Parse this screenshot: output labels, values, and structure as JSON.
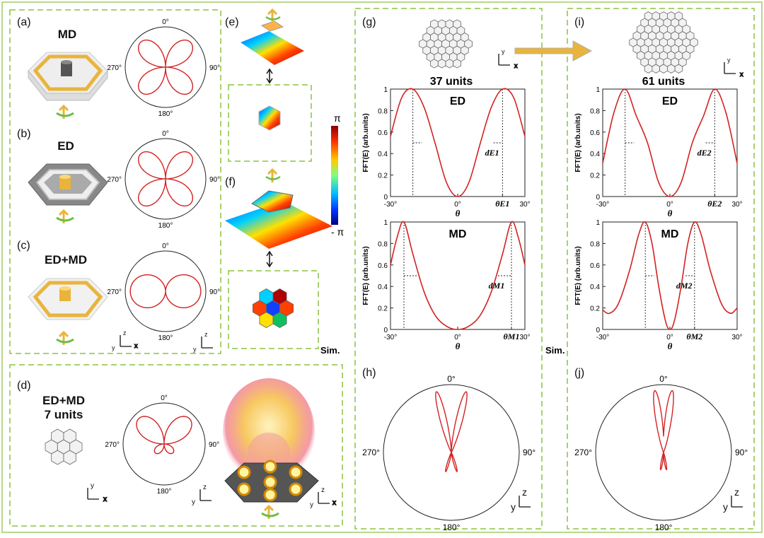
{
  "colors": {
    "panel_border": "#8cc43f",
    "curve": "#d32222",
    "gold": "#e9b43c",
    "gray": "#8a8a8a"
  },
  "panels": {
    "a": {
      "label": "(a)",
      "title": "MD"
    },
    "b": {
      "label": "(b)",
      "title": "ED"
    },
    "c": {
      "label": "(c)",
      "title": "ED+MD"
    },
    "d": {
      "label": "(d)",
      "title_line1": "ED+MD",
      "title_line2": "7 units"
    },
    "e": {
      "label": "(e)"
    },
    "f": {
      "label": "(f)"
    },
    "g": {
      "label": "(g)",
      "units": "37 units"
    },
    "h": {
      "label": "(h)"
    },
    "i": {
      "label": "(i)",
      "units": "61 units"
    },
    "j": {
      "label": "(j)"
    }
  },
  "polar": {
    "deg0": "0°",
    "deg90": "90°",
    "deg180": "180°",
    "deg270": "270°"
  },
  "colorbar": {
    "top": "π",
    "bottom": "- π"
  },
  "sim_label": "Sim.",
  "axes": {
    "x": "x",
    "y": "y",
    "z": "z"
  },
  "chart_data": [
    {
      "type": "line",
      "id": "g-ED",
      "title": "ED",
      "xlabel": "θ",
      "ylabel": "FFT(E) (arb.units)",
      "xlim": [
        -30,
        30
      ],
      "ylim": [
        0,
        1
      ],
      "xticks": [
        "-30°",
        "0°",
        "θE1",
        "30°"
      ],
      "yticks": [
        "0",
        "0.2",
        "0.4",
        "0.6",
        "0.8",
        "1"
      ],
      "annotation": "dE1",
      "x": [
        -30,
        -25,
        -20,
        -15,
        -10,
        -5,
        0,
        5,
        10,
        15,
        20,
        25,
        30
      ],
      "y": [
        0.56,
        0.92,
        1.0,
        0.83,
        0.49,
        0.13,
        0.0,
        0.13,
        0.49,
        0.83,
        1.0,
        0.92,
        0.56
      ]
    },
    {
      "type": "line",
      "id": "g-MD",
      "title": "MD",
      "xlabel": "θ",
      "ylabel": "FFT(E) (arb.units)",
      "xlim": [
        -30,
        30
      ],
      "ylim": [
        0,
        1
      ],
      "xticks": [
        "-30°",
        "0°",
        "θM1",
        "30°"
      ],
      "yticks": [
        "0",
        "0.2",
        "0.4",
        "0.6",
        "0.8",
        "1"
      ],
      "annotation": "dM1",
      "x": [
        -30,
        -27,
        -24,
        -20,
        -15,
        -10,
        -5,
        0,
        5,
        10,
        15,
        20,
        24,
        27,
        30
      ],
      "y": [
        0.6,
        0.86,
        1.0,
        0.7,
        0.35,
        0.13,
        0.03,
        0.0,
        0.03,
        0.13,
        0.35,
        0.7,
        1.0,
        0.86,
        0.6
      ]
    },
    {
      "type": "line",
      "id": "i-ED",
      "title": "ED",
      "xlabel": "θ",
      "ylabel": "FFT(E) (arb.units)",
      "xlim": [
        -30,
        30
      ],
      "ylim": [
        0,
        1
      ],
      "xticks": [
        "-30°",
        "0°",
        "θE2",
        "30°"
      ],
      "yticks": [
        "0",
        "0.2",
        "0.4",
        "0.6",
        "0.8",
        "1"
      ],
      "annotation": "dE2",
      "x": [
        -30,
        -25,
        -20,
        -15,
        -10,
        -5,
        0,
        5,
        10,
        15,
        20,
        25,
        30
      ],
      "y": [
        0.31,
        0.78,
        1.0,
        0.75,
        0.5,
        0.13,
        0.0,
        0.13,
        0.5,
        0.75,
        1.0,
        0.78,
        0.31
      ]
    },
    {
      "type": "line",
      "id": "i-MD",
      "title": "MD",
      "xlabel": "θ",
      "ylabel": "FFT(E) (arb.units)",
      "xlim": [
        -30,
        30
      ],
      "ylim": [
        0,
        1
      ],
      "xticks": [
        "-30°",
        "0°",
        "θM2",
        "30°"
      ],
      "yticks": [
        "0",
        "0.2",
        "0.4",
        "0.6",
        "0.8",
        "1"
      ],
      "annotation": "dM2",
      "x": [
        -30,
        -27,
        -23,
        -18,
        -14,
        -11,
        -8,
        -5,
        -2,
        0,
        2,
        5,
        8,
        11,
        14,
        18,
        23,
        27,
        30
      ],
      "y": [
        0.18,
        0.15,
        0.24,
        0.55,
        0.88,
        1.0,
        0.8,
        0.4,
        0.08,
        0.0,
        0.08,
        0.4,
        0.8,
        1.0,
        0.88,
        0.55,
        0.24,
        0.15,
        0.2
      ]
    }
  ]
}
